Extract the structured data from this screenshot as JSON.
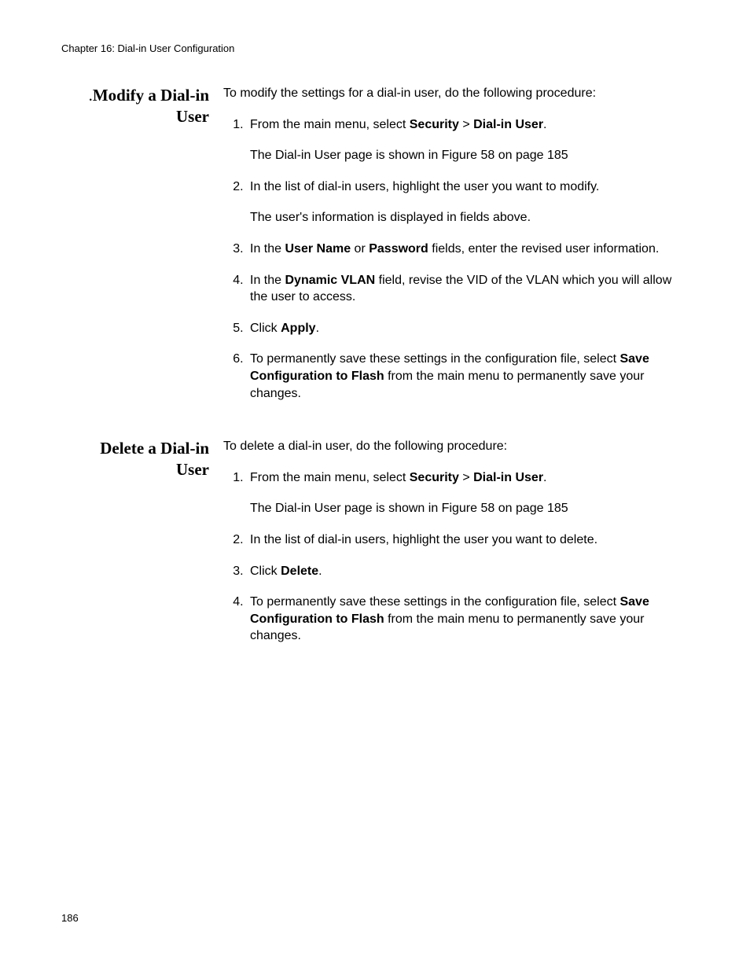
{
  "header": "Chapter 16: Dial-in User Configuration",
  "page_number": "186",
  "sections": [
    {
      "heading_prefix": ".",
      "heading_line1": "Modify a Dial-in",
      "heading_line2": "User",
      "intro": "To modify the settings for a dial-in user, do the following procedure:",
      "steps": [
        {
          "pre": "From the main menu, select ",
          "b1": "Security",
          "mid": " > ",
          "b2": "Dial-in User",
          "post": ".",
          "sub": "The Dial-in User page is shown in Figure 58 on page 185"
        },
        {
          "pre": "In the list of dial-in users, highlight the user you want to modify.",
          "sub": "The user's information is displayed in fields above."
        },
        {
          "pre": "In the ",
          "b1": "User Name",
          "mid": " or ",
          "b2": "Password",
          "post": " fields, enter the revised user information."
        },
        {
          "pre": "In the ",
          "b1": "Dynamic VLAN",
          "post": " field, revise the VID of the VLAN which you will allow the user to access."
        },
        {
          "pre": "Click ",
          "b1": "Apply",
          "post": "."
        },
        {
          "pre": "To permanently save these settings in the configuration file, select ",
          "b1": "Save Configuration to Flash",
          "post": " from the main menu to permanently save your changes."
        }
      ]
    },
    {
      "heading_line1": "Delete a Dial-in",
      "heading_line2": "User",
      "intro": "To delete a dial-in user, do the following procedure:",
      "steps": [
        {
          "pre": "From the main menu, select ",
          "b1": "Security",
          "mid": " > ",
          "b2": "Dial-in User",
          "post": ".",
          "sub": "The Dial-in User page is shown in Figure 58 on page 185"
        },
        {
          "pre": "In the list of dial-in users, highlight the user you want to delete."
        },
        {
          "pre": "Click ",
          "b1": "Delete",
          "post": "."
        },
        {
          "pre": "To permanently save these settings in the configuration file, select ",
          "b1": "Save Configuration to Flash",
          "post": " from the main menu to permanently save your changes."
        }
      ]
    }
  ]
}
